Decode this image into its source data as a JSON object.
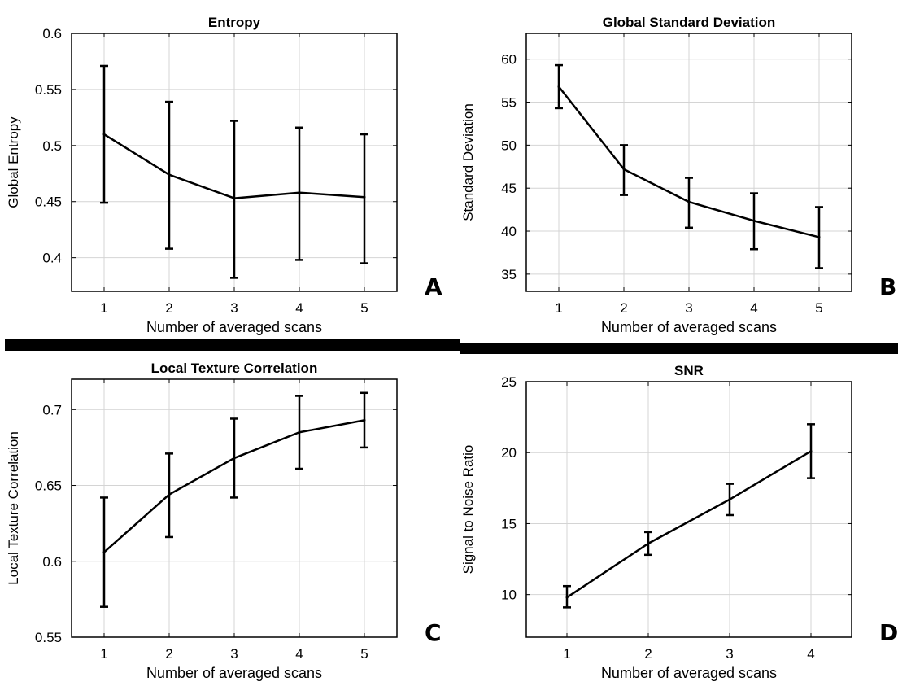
{
  "chart_data": [
    {
      "type": "line",
      "panel_letter": "A",
      "title": "Entropy",
      "xlabel": "Number of averaged scans",
      "ylabel": "Global Entropy",
      "x": [
        1,
        2,
        3,
        4,
        5
      ],
      "xticks": [
        1,
        2,
        3,
        4,
        5
      ],
      "xlim": [
        0.5,
        5.5
      ],
      "ylim": [
        0.37,
        0.6
      ],
      "yticks": [
        0.4,
        0.45,
        0.5,
        0.55,
        0.6
      ],
      "ytick_labels": [
        "0.4",
        "0.45",
        "0.5",
        "0.55",
        "0.6"
      ],
      "grid": true,
      "series": [
        {
          "values": [
            0.51,
            0.474,
            0.453,
            0.458,
            0.454
          ],
          "error_low": [
            0.449,
            0.408,
            0.382,
            0.398,
            0.395
          ],
          "error_high": [
            0.571,
            0.539,
            0.522,
            0.516,
            0.51
          ]
        }
      ]
    },
    {
      "type": "line",
      "panel_letter": "B",
      "title": "Global Standard Deviation",
      "xlabel": "Number of averaged scans",
      "ylabel": "Standard Deviation",
      "x": [
        1,
        2,
        3,
        4,
        5
      ],
      "xticks": [
        1,
        2,
        3,
        4,
        5
      ],
      "xlim": [
        0.5,
        5.5
      ],
      "ylim": [
        33,
        63
      ],
      "yticks": [
        35,
        40,
        45,
        50,
        55,
        60
      ],
      "ytick_labels": [
        "35",
        "40",
        "45",
        "50",
        "55",
        "60"
      ],
      "grid": true,
      "series": [
        {
          "values": [
            56.8,
            47.2,
            43.4,
            41.2,
            39.3
          ],
          "error_low": [
            54.3,
            44.2,
            40.4,
            37.9,
            35.7
          ],
          "error_high": [
            59.3,
            50.0,
            46.2,
            44.4,
            42.8
          ]
        }
      ]
    },
    {
      "type": "line",
      "panel_letter": "C",
      "title": "Local Texture Correlation",
      "xlabel": "Number of averaged scans",
      "ylabel": "Local Texture Correlation",
      "x": [
        1,
        2,
        3,
        4,
        5
      ],
      "xticks": [
        1,
        2,
        3,
        4,
        5
      ],
      "xlim": [
        0.5,
        5.5
      ],
      "ylim": [
        0.55,
        0.72
      ],
      "yticks": [
        0.55,
        0.6,
        0.65,
        0.7
      ],
      "ytick_labels": [
        "0.55",
        "0.6",
        "0.65",
        "0.7"
      ],
      "grid": true,
      "series": [
        {
          "values": [
            0.606,
            0.644,
            0.668,
            0.685,
            0.693
          ],
          "error_low": [
            0.57,
            0.616,
            0.642,
            0.661,
            0.675
          ],
          "error_high": [
            0.642,
            0.671,
            0.694,
            0.709,
            0.711
          ]
        }
      ]
    },
    {
      "type": "line",
      "panel_letter": "D",
      "title": "SNR",
      "xlabel": "Number of averaged scans",
      "ylabel": "Signal to Noise Ratio",
      "x": [
        1,
        2,
        3,
        4
      ],
      "xticks": [
        1,
        2,
        3,
        4
      ],
      "xlim": [
        0.5,
        4.5
      ],
      "ylim": [
        7,
        25
      ],
      "yticks": [
        10,
        15,
        20,
        25
      ],
      "ytick_labels": [
        "10",
        "15",
        "20",
        "25"
      ],
      "grid": true,
      "series": [
        {
          "values": [
            9.8,
            13.6,
            16.7,
            20.1
          ],
          "error_low": [
            9.1,
            12.8,
            15.6,
            18.2
          ],
          "error_high": [
            10.6,
            14.4,
            17.8,
            22.0
          ]
        }
      ]
    }
  ]
}
